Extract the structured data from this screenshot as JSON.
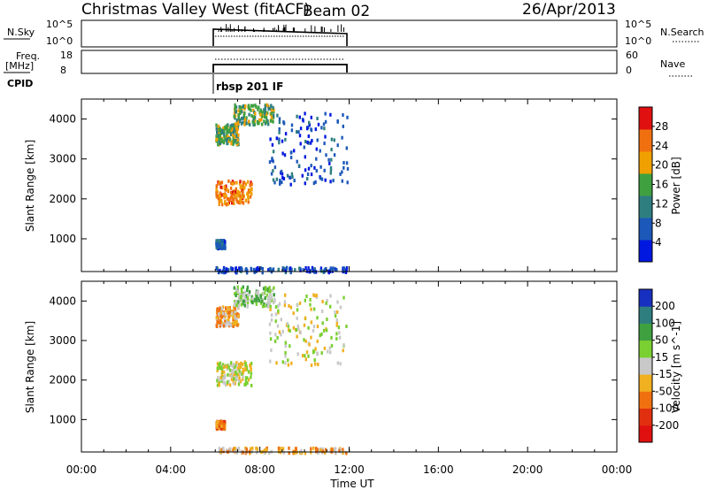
{
  "header": {
    "station": "Christmas Valley West (fitACF)",
    "beam": "Beam 02",
    "date": "26/Apr/2013"
  },
  "top_strip": {
    "left_label": "N.Sky",
    "left_ticks": [
      "10^5",
      "10^0"
    ],
    "right_label": "N.Search",
    "right_ticks": [
      "10^5",
      "10^0"
    ]
  },
  "freq_strip": {
    "left_label_line1": "Freq.",
    "left_label_line2": "[MHz]",
    "left_ticks": [
      "18",
      "8"
    ],
    "right_label": "Nave",
    "right_ticks": [
      "60",
      "0"
    ]
  },
  "cpid": {
    "label": "CPID",
    "program": "rbsp 201 IF"
  },
  "x_axis": {
    "label": "Time UT",
    "ticks": [
      "00:00",
      "04:00",
      "08:00",
      "12:00",
      "16:00",
      "20:00",
      "00:00"
    ]
  },
  "chart_data": [
    {
      "type": "heatmap",
      "panel": "power",
      "ylabel": "Slant Range [km]",
      "xlabel": "",
      "xlim_hours": [
        0,
        24
      ],
      "ylim_km": [
        180,
        4500
      ],
      "yticks": [
        "1000",
        "2000",
        "3000",
        "4000"
      ],
      "data_time_range_hours": [
        6.0,
        12.0
      ],
      "colorbar": {
        "label": "Power [dB]",
        "ticks": [
          "4",
          "8",
          "12",
          "16",
          "20",
          "24",
          "28"
        ],
        "range": [
          0,
          32
        ],
        "colors": [
          "#0018e0",
          "#1c58b8",
          "#2e7e80",
          "#3fa040",
          "#f0a000",
          "#f07010",
          "#e01010"
        ]
      },
      "scatter_regions": [
        {
          "t": [
            6.0,
            7.6
          ],
          "r": [
            1900,
            2500
          ],
          "level": 24
        },
        {
          "t": [
            6.0,
            7.0
          ],
          "r": [
            3400,
            3900
          ],
          "level": 16
        },
        {
          "t": [
            6.8,
            8.6
          ],
          "r": [
            3900,
            4400
          ],
          "level": 16
        },
        {
          "t": [
            8.4,
            11.9
          ],
          "r": [
            2400,
            4200
          ],
          "level": 6
        },
        {
          "t": [
            6.0,
            6.4
          ],
          "r": [
            800,
            1000
          ],
          "level": 8
        },
        {
          "t": [
            6.0,
            12.0
          ],
          "r": [
            190,
            320
          ],
          "level": 6
        }
      ]
    },
    {
      "type": "heatmap",
      "panel": "velocity",
      "ylabel": "Slant Range [km]",
      "xlabel": "Time UT",
      "xlim_hours": [
        0,
        24
      ],
      "ylim_km": [
        180,
        4500
      ],
      "yticks": [
        "1000",
        "2000",
        "3000",
        "4000"
      ],
      "data_time_range_hours": [
        6.0,
        12.0
      ],
      "colorbar": {
        "label": "Velocity [m s^-1]",
        "ticks": [
          "200",
          "100",
          "50",
          "15",
          "-15",
          "-50",
          "-100",
          "-200"
        ],
        "colors": [
          "#1830c0",
          "#2e7e80",
          "#3fa040",
          "#7ad030",
          "#c8c8c8",
          "#f0b020",
          "#f07010",
          "#e03010",
          "#e01010"
        ]
      },
      "scatter_regions": [
        {
          "t": [
            6.0,
            7.6
          ],
          "r": [
            1900,
            2500
          ],
          "level": 4
        },
        {
          "t": [
            6.0,
            7.0
          ],
          "r": [
            3400,
            3900
          ],
          "level": 5
        },
        {
          "t": [
            6.8,
            8.6
          ],
          "r": [
            3900,
            4400
          ],
          "level": 3
        },
        {
          "t": [
            8.4,
            11.9
          ],
          "r": [
            2400,
            4200
          ],
          "level": 4
        },
        {
          "t": [
            6.0,
            6.4
          ],
          "r": [
            800,
            1000
          ],
          "level": 6
        },
        {
          "t": [
            6.0,
            12.0
          ],
          "r": [
            190,
            320
          ],
          "level": 5
        }
      ]
    }
  ]
}
